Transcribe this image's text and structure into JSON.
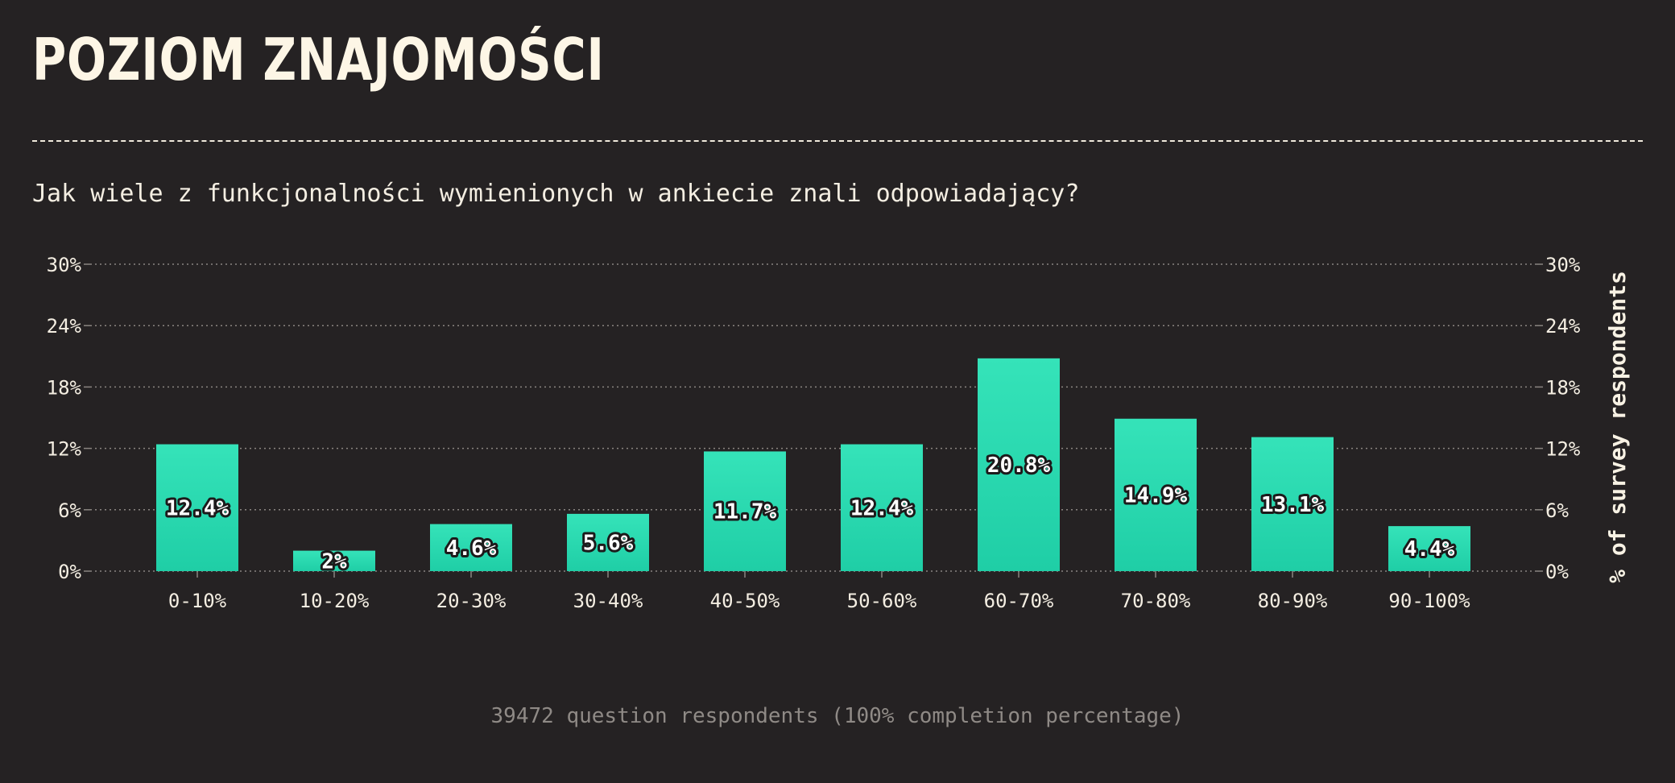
{
  "header": {
    "title": "POZIOM ZNAJOMOŚCI",
    "subtitle": "Jak wiele z funkcjonalności wymienionych w ankiecie znali odpowiadający?"
  },
  "footer": {
    "text": "39472 question respondents (100% completion percentage)"
  },
  "colors": {
    "bar_top": "#35e3b9",
    "bar_bottom": "#1fcea6",
    "background": "#252223",
    "grid": "#8a8581"
  },
  "chart_data": {
    "type": "bar",
    "title": "POZIOM ZNAJOMOŚCI",
    "subtitle": "Jak wiele z funkcjonalności wymienionych w ankiecie znali odpowiadający?",
    "xlabel": "",
    "ylabel": "% of survey respondents",
    "ylim": [
      0,
      30
    ],
    "yticks": [
      0,
      6,
      12,
      18,
      24,
      30
    ],
    "ytick_labels": [
      "0%",
      "6%",
      "12%",
      "18%",
      "24%",
      "30%"
    ],
    "grid": true,
    "categories": [
      "0-10%",
      "10-20%",
      "20-30%",
      "30-40%",
      "40-50%",
      "50-60%",
      "60-70%",
      "70-80%",
      "80-90%",
      "90-100%"
    ],
    "values": [
      12.4,
      2,
      4.6,
      5.6,
      11.7,
      12.4,
      20.8,
      14.9,
      13.1,
      4.4
    ],
    "value_labels": [
      "12.4%",
      "2%",
      "4.6%",
      "5.6%",
      "11.7%",
      "12.4%",
      "20.8%",
      "14.9%",
      "13.1%",
      "4.4%"
    ]
  }
}
